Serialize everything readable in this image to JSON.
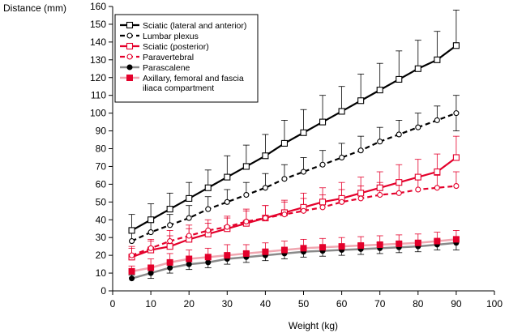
{
  "chart_data": {
    "type": "line",
    "title": "",
    "xlabel": "Weight (kg)",
    "ylabel": "Distance (mm)",
    "xlim": [
      0,
      100
    ],
    "ylim": [
      0,
      160
    ],
    "xticks": [
      0,
      10,
      20,
      30,
      40,
      50,
      60,
      70,
      80,
      90,
      100
    ],
    "yticks": [
      0,
      10,
      20,
      30,
      40,
      50,
      60,
      70,
      80,
      90,
      100,
      110,
      120,
      130,
      140,
      150,
      160
    ],
    "grid": false,
    "legend_position": "top-left",
    "x": [
      5,
      10,
      15,
      20,
      25,
      30,
      35,
      40,
      45,
      50,
      55,
      60,
      65,
      70,
      75,
      80,
      85,
      90
    ],
    "series": [
      {
        "name": "Sciatic (lateral and anterior)",
        "color": "#000000",
        "line": "solid",
        "marker": "open-square",
        "values": [
          34,
          40,
          46,
          52,
          58,
          64,
          70,
          76,
          83,
          89,
          95,
          101,
          107,
          113,
          119,
          125,
          130,
          138
        ],
        "error_up": [
          9,
          9,
          9,
          9,
          10,
          12,
          12,
          12,
          13,
          13,
          15,
          14,
          15,
          15,
          16,
          16,
          16,
          20
        ]
      },
      {
        "name": "Lumbar plexus",
        "color": "#000000",
        "line": "dashed",
        "marker": "open-circle",
        "values": [
          28,
          33,
          37,
          41,
          46,
          50,
          54,
          58,
          63,
          67,
          71,
          75,
          79,
          84,
          88,
          92,
          96,
          100
        ],
        "error_up": [
          6,
          6,
          6,
          7,
          7,
          7,
          7,
          8,
          8,
          8,
          8,
          8,
          8,
          8,
          8,
          8,
          8,
          10
        ],
        "error_down": [
          0,
          0,
          0,
          0,
          0,
          0,
          0,
          0,
          0,
          0,
          0,
          0,
          0,
          0,
          0,
          0,
          0,
          10
        ]
      },
      {
        "name": "Sciatic (posterior)",
        "color": "#e4002b",
        "line": "solid",
        "marker": "open-square",
        "values": [
          19,
          23,
          25,
          29,
          32,
          35,
          38,
          41,
          44,
          47,
          50,
          52,
          55,
          58,
          61,
          64,
          67,
          75
        ],
        "error_up": [
          5,
          5,
          6,
          6,
          6,
          6,
          7,
          7,
          7,
          8,
          8,
          9,
          9,
          9,
          10,
          10,
          10,
          12
        ]
      },
      {
        "name": "Paravertebral",
        "color": "#e4002b",
        "line": "dashed",
        "marker": "open-circle",
        "values": [
          20,
          24,
          28,
          31,
          34,
          36,
          39,
          41,
          43,
          45,
          47,
          50,
          52,
          54,
          55,
          57,
          58,
          59
        ],
        "error_up": [
          5,
          5,
          6,
          6,
          6,
          6,
          7,
          7,
          7,
          7,
          7,
          7,
          7,
          7,
          7,
          7,
          7,
          8
        ]
      },
      {
        "name": "Parascalene",
        "color": "#000000",
        "line": "solid-gray",
        "marker": "filled-circle",
        "values": [
          7,
          10,
          13,
          15,
          16,
          18,
          19,
          20,
          21,
          22,
          22.5,
          23,
          23.5,
          24,
          24.5,
          25,
          26,
          27
        ],
        "error_up": [
          2,
          3,
          3,
          3,
          3,
          3,
          3,
          3,
          3,
          3,
          3,
          3,
          3,
          3,
          3,
          3,
          3,
          3
        ],
        "error_down": [
          0,
          3,
          3,
          3,
          3,
          3,
          3,
          3,
          3,
          3,
          3,
          3,
          3,
          3,
          3,
          3,
          3,
          4
        ]
      },
      {
        "name": "Axillary, femoral and fascia iliaca compartment",
        "color": "#e4002b",
        "line": "solid-pink",
        "marker": "filled-square",
        "values": [
          11,
          13,
          16,
          18,
          19,
          20,
          21,
          22,
          23,
          24,
          24.5,
          25,
          25.5,
          26,
          26.5,
          27,
          28,
          29
        ],
        "error_up": [
          3,
          5,
          5,
          5,
          5,
          6,
          5,
          5,
          5,
          5,
          5,
          5,
          5,
          5,
          5,
          5,
          5,
          5
        ]
      }
    ]
  }
}
